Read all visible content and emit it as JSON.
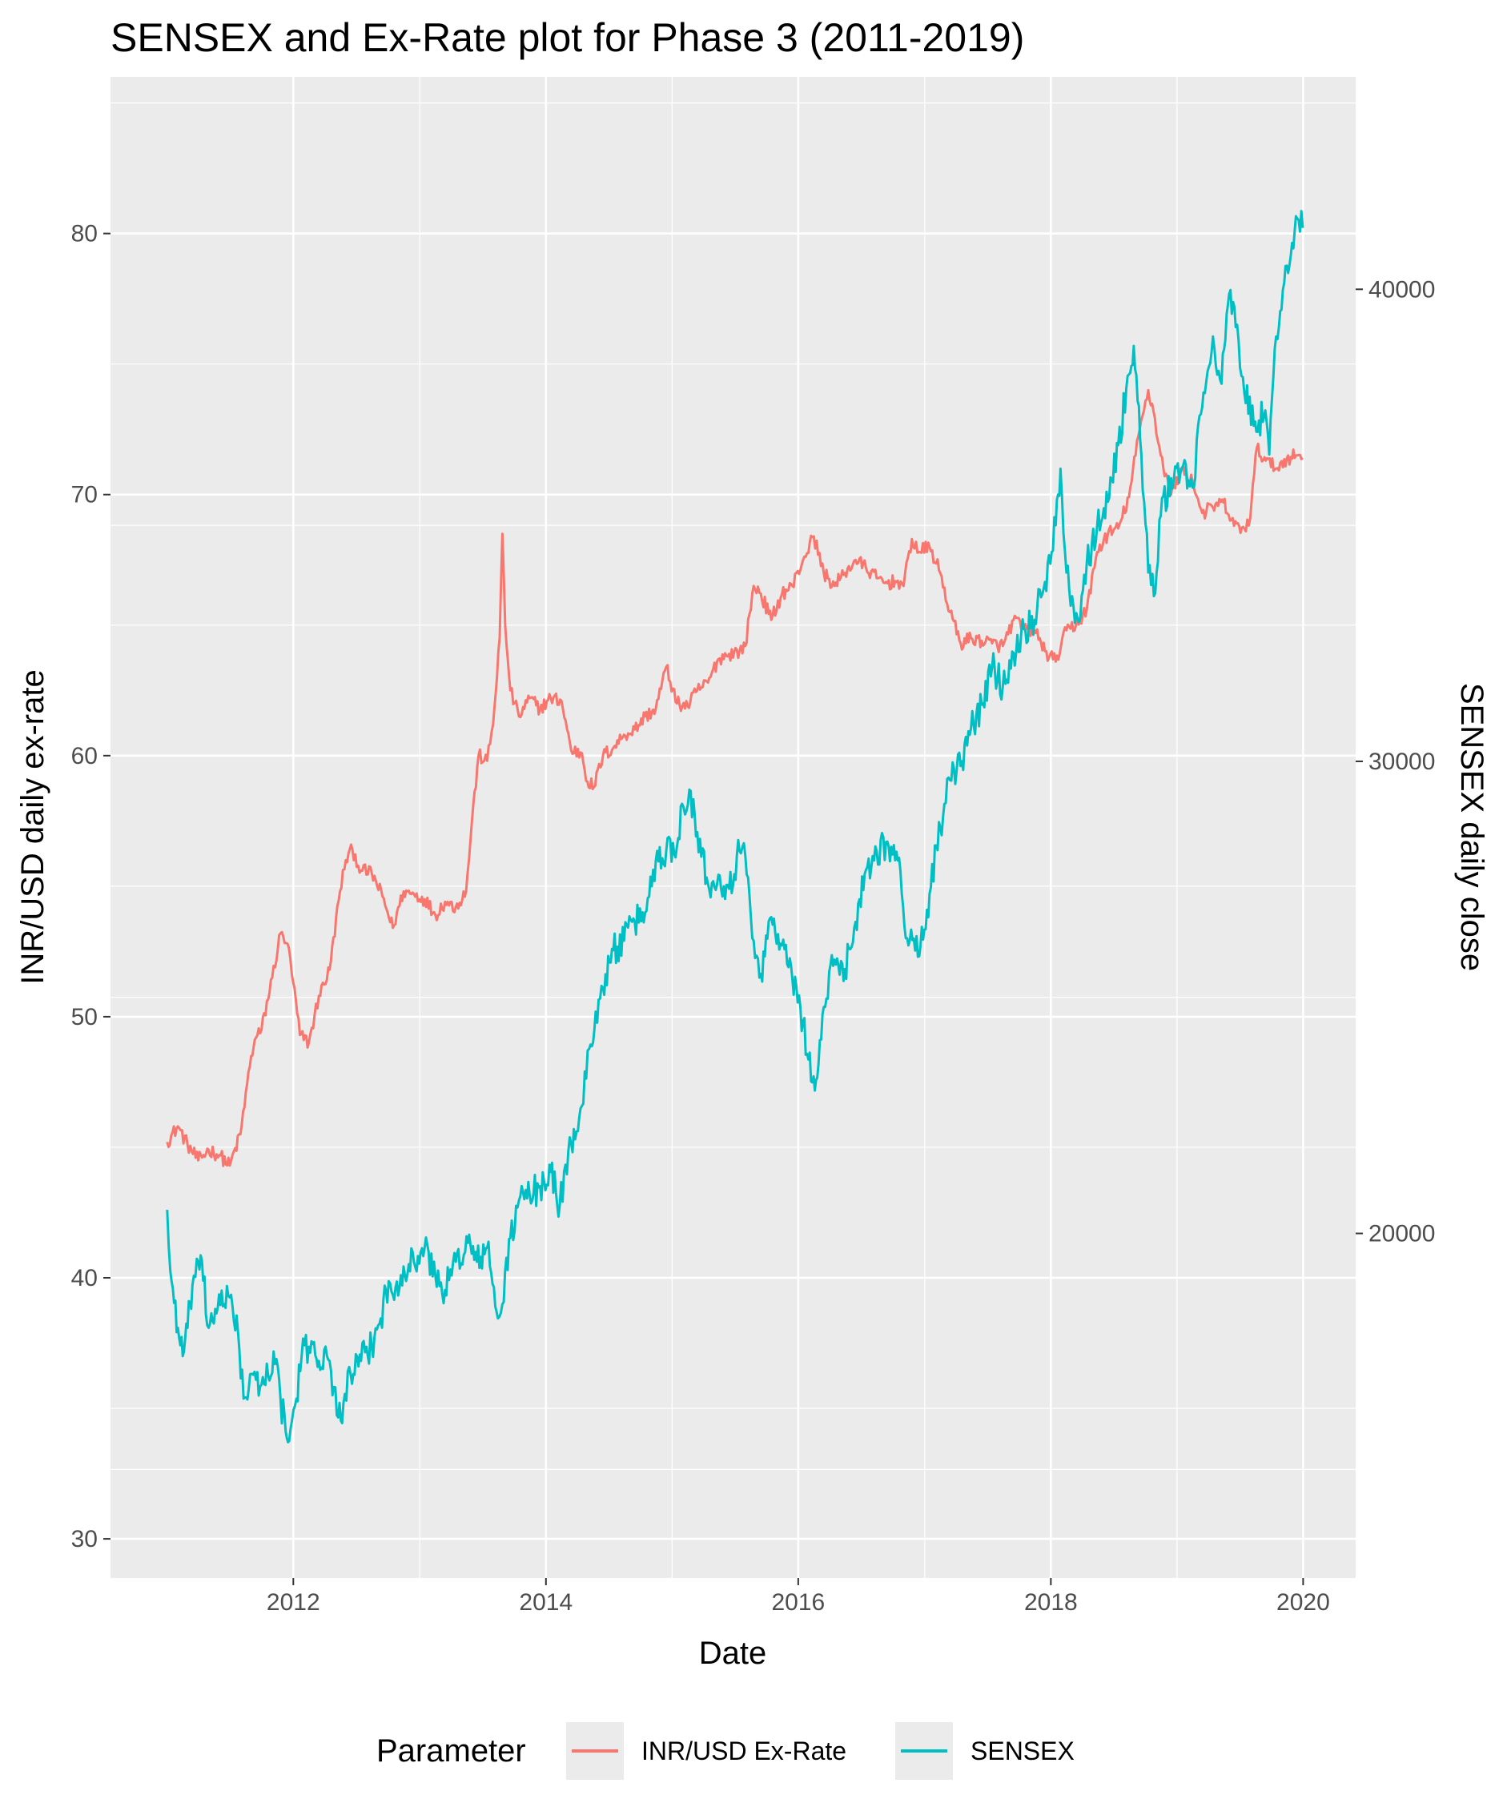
{
  "chart_data": {
    "type": "line",
    "title": "SENSEX and Ex-Rate plot for Phase 3 (2011-2019)",
    "xlabel": "Date",
    "ylabel": "INR/USD daily ex-rate",
    "ylabel_secondary": "SENSEX daily close",
    "x_ticks": [
      "2012",
      "2014",
      "2016",
      "2018",
      "2020"
    ],
    "y_ticks": [
      "30",
      "40",
      "50",
      "60",
      "70",
      "80"
    ],
    "y2_ticks": [
      "20000",
      "30000",
      "40000"
    ],
    "xlim": [
      "2010-07-21",
      "2020-06-01"
    ],
    "ylim": [
      28.5,
      86
    ],
    "y2lim": [
      12700,
      44500
    ],
    "grid": true,
    "legend": {
      "title": "Parameter",
      "position": "bottom"
    },
    "series": [
      {
        "name": "INR/USD Ex-Rate",
        "axis": "left",
        "color": "#F8766D",
        "x": [
          "2011-01-01",
          "2011-02-01",
          "2011-03-01",
          "2011-04-01",
          "2011-05-01",
          "2011-06-01",
          "2011-07-01",
          "2011-08-01",
          "2011-09-01",
          "2011-09-15",
          "2011-10-01",
          "2011-11-01",
          "2011-11-25",
          "2011-12-15",
          "2012-01-01",
          "2012-01-20",
          "2012-02-15",
          "2012-03-15",
          "2012-04-15",
          "2012-05-15",
          "2012-06-01",
          "2012-06-20",
          "2012-07-15",
          "2012-08-15",
          "2012-09-15",
          "2012-10-15",
          "2012-11-15",
          "2012-12-15",
          "2013-01-15",
          "2013-02-15",
          "2013-03-15",
          "2013-04-15",
          "2013-05-15",
          "2013-06-01",
          "2013-06-20",
          "2013-07-15",
          "2013-08-01",
          "2013-08-20",
          "2013-08-28",
          "2013-09-05",
          "2013-09-20",
          "2013-10-15",
          "2013-11-15",
          "2013-12-15",
          "2014-01-15",
          "2014-02-15",
          "2014-03-15",
          "2014-04-15",
          "2014-05-01",
          "2014-05-20",
          "2014-06-15",
          "2014-07-15",
          "2014-08-15",
          "2014-09-15",
          "2014-10-15",
          "2014-11-15",
          "2014-12-15",
          "2015-01-15",
          "2015-02-15",
          "2015-03-15",
          "2015-04-15",
          "2015-05-15",
          "2015-06-15",
          "2015-07-15",
          "2015-08-01",
          "2015-08-25",
          "2015-09-15",
          "2015-10-15",
          "2015-11-15",
          "2015-12-15",
          "2016-01-15",
          "2016-02-15",
          "2016-03-15",
          "2016-04-15",
          "2016-05-15",
          "2016-06-15",
          "2016-07-15",
          "2016-08-15",
          "2016-09-15",
          "2016-10-15",
          "2016-11-01",
          "2016-11-25",
          "2016-12-15",
          "2017-01-15",
          "2017-02-15",
          "2017-03-15",
          "2017-04-15",
          "2017-05-15",
          "2017-06-15",
          "2017-07-15",
          "2017-08-15",
          "2017-09-15",
          "2017-10-15",
          "2017-11-15",
          "2017-12-15",
          "2018-01-15",
          "2018-02-15",
          "2018-03-15",
          "2018-04-15",
          "2018-05-15",
          "2018-06-15",
          "2018-07-15",
          "2018-08-15",
          "2018-09-15",
          "2018-10-10",
          "2018-10-25",
          "2018-11-15",
          "2018-12-15",
          "2019-01-15",
          "2019-02-15",
          "2019-03-15",
          "2019-04-15",
          "2019-05-15",
          "2019-06-15",
          "2019-07-15",
          "2019-08-01",
          "2019-08-20",
          "2019-09-15",
          "2019-10-15",
          "2019-11-15",
          "2019-12-15",
          "2019-12-31"
        ],
        "values": [
          45.2,
          45.8,
          45.1,
          44.5,
          44.9,
          44.7,
          44.3,
          45.5,
          48.5,
          49.2,
          49.5,
          51.5,
          53.2,
          52.8,
          51.3,
          49.3,
          49.0,
          50.8,
          51.8,
          54.8,
          56.0,
          56.4,
          55.6,
          55.5,
          54.6,
          53.4,
          54.8,
          54.7,
          54.5,
          53.9,
          54.4,
          54.2,
          54.8,
          57.5,
          60.0,
          59.8,
          61.2,
          64.5,
          68.5,
          65.0,
          62.5,
          61.5,
          62.2,
          61.8,
          62.2,
          62.1,
          60.2,
          60.1,
          59.0,
          58.8,
          60.0,
          60.3,
          60.8,
          61.0,
          61.5,
          61.8,
          63.4,
          62.0,
          61.9,
          62.5,
          62.8,
          63.7,
          63.9,
          64.0,
          64.2,
          66.5,
          66.2,
          65.2,
          66.2,
          66.5,
          67.5,
          68.4,
          67.0,
          66.5,
          67.0,
          67.5,
          67.2,
          66.8,
          66.6,
          66.7,
          66.5,
          68.3,
          67.8,
          68.0,
          67.0,
          65.5,
          64.3,
          64.5,
          64.4,
          64.3,
          64.2,
          65.2,
          64.9,
          64.8,
          64.0,
          63.6,
          64.8,
          65.0,
          65.6,
          67.8,
          68.5,
          68.7,
          69.9,
          72.5,
          74.0,
          73.2,
          71.5,
          70.0,
          71.0,
          70.5,
          69.3,
          69.5,
          69.7,
          68.8,
          68.7,
          69.1,
          71.8,
          71.3,
          71.0,
          71.4,
          71.5,
          71.4
        ]
      },
      {
        "name": "SENSEX",
        "axis": "right",
        "color": "#00BFC4",
        "x": [
          "2011-01-01",
          "2011-01-10",
          "2011-02-01",
          "2011-02-15",
          "2011-03-01",
          "2011-03-15",
          "2011-04-01",
          "2011-04-15",
          "2011-05-01",
          "2011-05-20",
          "2011-06-15",
          "2011-07-05",
          "2011-07-25",
          "2011-08-10",
          "2011-08-25",
          "2011-09-15",
          "2011-10-01",
          "2011-10-20",
          "2011-11-05",
          "2011-11-25",
          "2011-12-10",
          "2011-12-20",
          "2012-01-10",
          "2012-01-25",
          "2012-02-15",
          "2012-03-01",
          "2012-03-15",
          "2012-04-15",
          "2012-05-10",
          "2012-05-25",
          "2012-06-15",
          "2012-07-15",
          "2012-08-15",
          "2012-09-10",
          "2012-09-25",
          "2012-10-15",
          "2012-11-15",
          "2012-12-15",
          "2013-01-15",
          "2013-02-15",
          "2013-03-15",
          "2013-04-15",
          "2013-05-20",
          "2013-06-15",
          "2013-07-15",
          "2013-08-15",
          "2013-08-28",
          "2013-09-20",
          "2013-10-15",
          "2013-11-15",
          "2013-12-15",
          "2014-01-15",
          "2014-02-10",
          "2014-03-15",
          "2014-04-15",
          "2014-05-10",
          "2014-05-25",
          "2014-06-15",
          "2014-07-15",
          "2014-08-15",
          "2014-09-15",
          "2014-10-15",
          "2014-11-15",
          "2014-12-15",
          "2015-01-15",
          "2015-01-30",
          "2015-02-20",
          "2015-03-15",
          "2015-04-15",
          "2015-05-15",
          "2015-06-15",
          "2015-07-15",
          "2015-08-01",
          "2015-08-25",
          "2015-09-15",
          "2015-10-15",
          "2015-11-15",
          "2015-12-15",
          "2016-01-15",
          "2016-02-11",
          "2016-02-25",
          "2016-03-15",
          "2016-04-15",
          "2016-05-15",
          "2016-06-15",
          "2016-07-15",
          "2016-08-15",
          "2016-09-15",
          "2016-10-15",
          "2016-11-15",
          "2016-12-20",
          "2017-01-15",
          "2017-02-15",
          "2017-03-15",
          "2017-04-15",
          "2017-05-15",
          "2017-06-15",
          "2017-07-15",
          "2017-08-15",
          "2017-09-15",
          "2017-10-15",
          "2017-11-15",
          "2017-12-15",
          "2018-01-15",
          "2018-01-29",
          "2018-02-15",
          "2018-03-20",
          "2018-04-15",
          "2018-05-15",
          "2018-06-15",
          "2018-07-15",
          "2018-08-15",
          "2018-08-29",
          "2018-09-20",
          "2018-10-10",
          "2018-10-26",
          "2018-11-15",
          "2018-12-15",
          "2019-01-15",
          "2019-02-15",
          "2019-03-15",
          "2019-04-15",
          "2019-05-10",
          "2019-06-01",
          "2019-06-20",
          "2019-07-15",
          "2019-08-15",
          "2019-09-10",
          "2019-09-25",
          "2019-10-15",
          "2019-11-15",
          "2019-12-15",
          "2019-12-31"
        ],
        "values": [
          20500,
          19200,
          18000,
          17400,
          18000,
          18900,
          19400,
          19000,
          18000,
          18400,
          18500,
          18700,
          17900,
          16500,
          16700,
          16900,
          16800,
          17000,
          17500,
          16500,
          15800,
          15600,
          16500,
          17400,
          17600,
          17700,
          17300,
          17300,
          16100,
          16400,
          17000,
          17300,
          17600,
          18200,
          18800,
          18700,
          19300,
          19400,
          19700,
          19100,
          18800,
          19400,
          19800,
          19400,
          19700,
          18200,
          18500,
          19900,
          20700,
          20800,
          21000,
          21300,
          20600,
          21900,
          22700,
          24000,
          24700,
          25200,
          26000,
          26200,
          26600,
          26800,
          27900,
          28100,
          28200,
          29100,
          29400,
          28500,
          27400,
          27600,
          27300,
          28100,
          28000,
          26200,
          25500,
          26700,
          26100,
          25400,
          24500,
          23200,
          23300,
          24800,
          25800,
          25600,
          26600,
          27700,
          28100,
          28300,
          27900,
          26100,
          26100,
          27200,
          28600,
          29600,
          29900,
          30700,
          31200,
          32000,
          31600,
          32300,
          32800,
          33000,
          33800,
          35000,
          36200,
          34000,
          33000,
          34200,
          35000,
          35500,
          36700,
          38200,
          38800,
          36500,
          34000,
          33500,
          35200,
          36000,
          36200,
          35800,
          37500,
          39000,
          38000,
          39900,
          39200,
          37800,
          37200,
          37300,
          36500,
          39000,
          40500,
          41500,
          41300
        ]
      }
    ]
  }
}
